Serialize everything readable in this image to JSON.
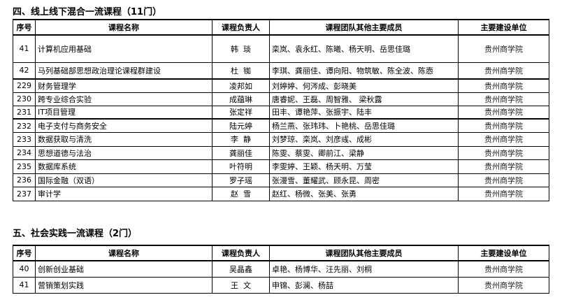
{
  "sections": [
    {
      "title": "四、线上线下混合一流课程（11门）",
      "header": [
        "序号",
        "课程名称",
        "课程负责人",
        "课程团队其他主要成员",
        "主要建设单位"
      ],
      "rows": [
        [
          "41",
          "计算机应用基础",
          "韩  琰",
          "栾岚、袁永红、陈曦、杨天明、岳思佳璐",
          "贵州商学院"
        ],
        [
          "42",
          "马列基础部思想政治理论课程群建设",
          "杜  铷",
          "李琪、龚丽佳、谭向阳、物筑敏、陈全波、陈悫",
          "贵州商学院"
        ],
        [
          "229",
          "财务管理学",
          "凌邦如",
          "刘婷婷、何涔成、彭晓美",
          "贵州商学院"
        ],
        [
          "230",
          "跨专业综合实验",
          "成蕴琳",
          "唐睿妮、王磊、周智雅、 梁秋露",
          "贵州商学院"
        ],
        [
          "231",
          "IT项目管理",
          "张定祥",
          "田丰、谭艳萍、张振宇、陆丰",
          "贵州商学院"
        ],
        [
          "232",
          "电子支付与商务安全",
          "陆元婷",
          "杨兰燕、张玮玮、卜艳桃、岳思佳璐",
          "贵州商学院"
        ],
        [
          "233",
          "数据获取与清洗",
          "李  静",
          "刘梦琼、栾岚、刘彦彧、成彬",
          "贵州商学院"
        ],
        [
          "234",
          "思想道德与法治",
          "龚丽佳",
          "陈雯、蔡雯、卿前江、梁静",
          "贵州商学院"
        ],
        [
          "235",
          "数据库系统",
          "叶符明",
          "李雯婷、王颖、杨天明、万莹",
          "贵州商学院"
        ],
        [
          "236",
          "国际金融（双语）",
          "罗子瑶",
          "张漫雪、董耀武、顾永昆、周密",
          "贵州商学院"
        ],
        [
          "237",
          "审计学",
          "赵  雪",
          "赵红、杨微、张美、张勇",
          "贵州商学院"
        ]
      ]
    },
    {
      "title": "五、社会实践一流课程（2门）",
      "header": [
        "序号",
        "课程名称",
        "课程负责人",
        "课程团队其他主要成员",
        "主要建设单位"
      ],
      "rows": [
        [
          "40",
          "创新创业基础",
          "吴晶鑫",
          "卓艳、杨博华、汪先丽、刘桐",
          "贵州商学院"
        ],
        [
          "41",
          "营销策划实践",
          "王  文",
          "申锦、彭澜、杨喆",
          "贵州商学院"
        ]
      ]
    }
  ]
}
